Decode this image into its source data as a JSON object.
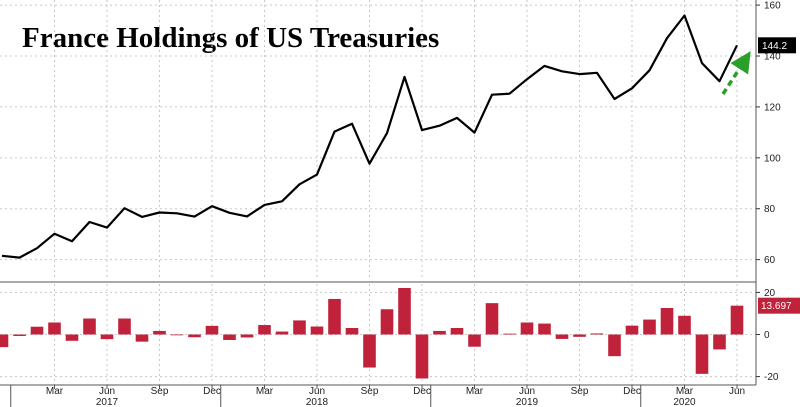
{
  "title": "France Holdings of US Treasuries",
  "colors": {
    "line": "#000000",
    "bar": "#c0223b",
    "arrow": "#2aa02a",
    "grid": "#c8c8c8"
  },
  "chart_data": [
    {
      "type": "line",
      "title": "France Holdings of US Treasuries",
      "x": [
        "2016-12",
        "2017-01",
        "2017-02",
        "2017-03",
        "2017-04",
        "2017-05",
        "2017-06",
        "2017-07",
        "2017-08",
        "2017-09",
        "2017-10",
        "2017-11",
        "2017-12",
        "2018-01",
        "2018-02",
        "2018-03",
        "2018-04",
        "2018-05",
        "2018-06",
        "2018-07",
        "2018-08",
        "2018-09",
        "2018-10",
        "2018-11",
        "2018-12",
        "2019-01",
        "2019-02",
        "2019-03",
        "2019-04",
        "2019-05",
        "2019-06",
        "2019-07",
        "2019-08",
        "2019-09",
        "2019-10",
        "2019-11",
        "2019-12",
        "2020-01",
        "2020-02",
        "2020-03",
        "2020-04",
        "2020-05",
        "2020-06"
      ],
      "values": [
        61.5,
        60.8,
        64.5,
        70.2,
        67.2,
        74.8,
        72.6,
        80.2,
        76.8,
        78.5,
        78.2,
        76.9,
        81.0,
        78.4,
        77.0,
        81.5,
        82.9,
        89.6,
        93.4,
        110.3,
        113.4,
        97.7,
        109.7,
        131.8,
        110.9,
        112.6,
        115.7,
        109.9,
        124.8,
        125.2,
        130.9,
        136.1,
        134.0,
        132.9,
        133.4,
        123.1,
        127.3,
        134.4,
        147.0,
        155.9,
        137.2,
        130.1,
        144.2
      ],
      "last_value_label": "144.2",
      "ylim": [
        52,
        162
      ],
      "y_ticks": [
        60,
        80,
        100,
        120,
        140,
        160
      ],
      "grid": true
    },
    {
      "type": "bar",
      "x": [
        "2016-12",
        "2017-01",
        "2017-02",
        "2017-03",
        "2017-04",
        "2017-05",
        "2017-06",
        "2017-07",
        "2017-08",
        "2017-09",
        "2017-10",
        "2017-11",
        "2017-12",
        "2018-01",
        "2018-02",
        "2018-03",
        "2018-04",
        "2018-05",
        "2018-06",
        "2018-07",
        "2018-08",
        "2018-09",
        "2018-10",
        "2018-11",
        "2018-12",
        "2019-01",
        "2019-02",
        "2019-03",
        "2019-04",
        "2019-05",
        "2019-06",
        "2019-07",
        "2019-08",
        "2019-09",
        "2019-10",
        "2019-11",
        "2019-12",
        "2020-01",
        "2020-02",
        "2020-03",
        "2020-04",
        "2020-05",
        "2020-06"
      ],
      "values": [
        -6,
        -0.7,
        3.7,
        5.7,
        -3,
        7.6,
        -2.2,
        7.6,
        -3.4,
        1.7,
        -0.3,
        -1.3,
        4.1,
        -2.6,
        -1.4,
        4.5,
        1.4,
        6.7,
        3.8,
        16.9,
        3.1,
        -15.7,
        12.0,
        22.1,
        -20.9,
        1.7,
        3.1,
        -5.8,
        14.9,
        0.4,
        5.7,
        5.2,
        -2.1,
        -1.1,
        0.5,
        -10.3,
        4.2,
        7.1,
        12.6,
        8.9,
        -18.7,
        -7.1,
        13.697
      ],
      "last_value_label": "13.697",
      "ylim": [
        -24,
        24
      ],
      "y_ticks": [
        -20,
        0,
        20
      ],
      "grid": true
    }
  ],
  "x_axis": {
    "month_ticks": [
      {
        "date": "2017-03",
        "label": "Mar"
      },
      {
        "date": "2017-06",
        "label": "Jun"
      },
      {
        "date": "2017-09",
        "label": "Sep"
      },
      {
        "date": "2017-12",
        "label": "Dec"
      },
      {
        "date": "2018-03",
        "label": "Mar"
      },
      {
        "date": "2018-06",
        "label": "Jun"
      },
      {
        "date": "2018-09",
        "label": "Sep"
      },
      {
        "date": "2018-12",
        "label": "Dec"
      },
      {
        "date": "2019-03",
        "label": "Mar"
      },
      {
        "date": "2019-06",
        "label": "Jun"
      },
      {
        "date": "2019-09",
        "label": "Sep"
      },
      {
        "date": "2019-12",
        "label": "Dec"
      },
      {
        "date": "2020-03",
        "label": "Mar"
      },
      {
        "date": "2020-06",
        "label": "Jun"
      }
    ],
    "years": [
      {
        "label": "2017",
        "center": "2017-06"
      },
      {
        "label": "2018",
        "center": "2018-06"
      },
      {
        "label": "2019",
        "center": "2019-06"
      },
      {
        "label": "2020",
        "center": "2020-03"
      }
    ]
  }
}
